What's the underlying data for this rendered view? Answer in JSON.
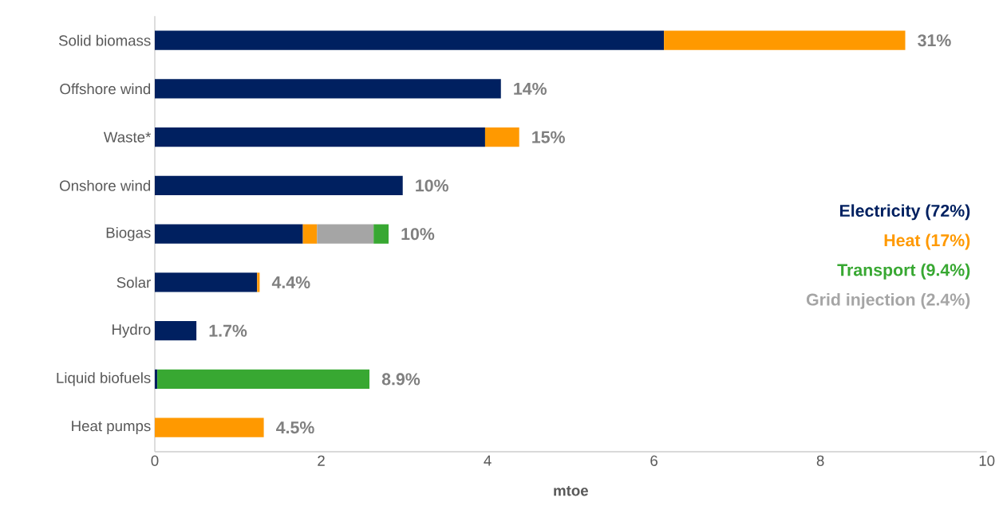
{
  "chart_data": {
    "type": "bar",
    "orientation": "horizontal",
    "stacked": true,
    "xlabel": "mtoe",
    "categories": [
      "Solid biomass",
      "Offshore wind",
      "Waste*",
      "Onshore wind",
      "Biogas",
      "Solar",
      "Hydro",
      "Liquid biofuels",
      "Heat pumps"
    ],
    "series": [
      {
        "name": "Electricity (72%)",
        "color": "#002060",
        "values": [
          6.12,
          4.16,
          3.97,
          2.98,
          1.78,
          1.23,
          0.5,
          0.03,
          null
        ]
      },
      {
        "name": "Heat (17%)",
        "color": "#ff9900",
        "values": [
          2.9,
          null,
          0.41,
          null,
          0.17,
          0.03,
          null,
          null,
          1.31
        ]
      },
      {
        "name": "Grid injection (2.4%)",
        "color": "#a5a5a5",
        "values": [
          null,
          null,
          null,
          null,
          0.68,
          null,
          null,
          null,
          null
        ]
      },
      {
        "name": "Transport (9.4%)",
        "color": "#38a832",
        "values": [
          null,
          null,
          null,
          null,
          0.18,
          null,
          null,
          2.55,
          null
        ]
      }
    ],
    "annotations": [
      "31%",
      "14%",
      "15%",
      "10%",
      "10%",
      "4.4%",
      "1.7%",
      "8.9%",
      "4.5%"
    ],
    "xlim": [
      0,
      10
    ],
    "xticks": [
      0,
      2,
      4,
      6,
      8,
      10
    ],
    "grid": false,
    "legend": "right"
  }
}
